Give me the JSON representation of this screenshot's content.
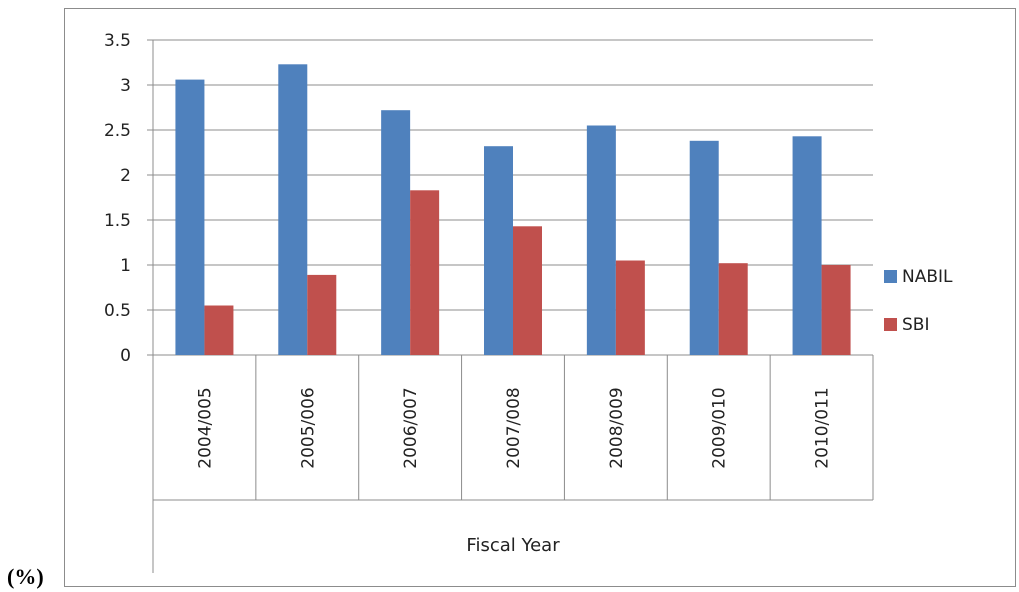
{
  "chart_data": {
    "type": "bar",
    "title": "",
    "xlabel": "Fiscal Year",
    "ylabel": "(%)",
    "ylim": [
      0,
      3.5
    ],
    "yticks": [
      "0",
      "0.5",
      "1",
      "1.5",
      "2",
      "2.5",
      "3",
      "3.5"
    ],
    "categories": [
      "2004/005",
      "2005/006",
      "2006/007",
      "2007/008",
      "2008/009",
      "2009/010",
      "2010/011"
    ],
    "series": [
      {
        "name": "NABIL",
        "color": "#4f81bd",
        "values": [
          3.06,
          3.23,
          2.72,
          2.32,
          2.55,
          2.38,
          2.43
        ]
      },
      {
        "name": "SBI",
        "color": "#c0504d",
        "values": [
          0.55,
          0.89,
          1.83,
          1.43,
          1.05,
          1.02,
          1.0
        ]
      }
    ],
    "grid": true,
    "legend": "right"
  }
}
